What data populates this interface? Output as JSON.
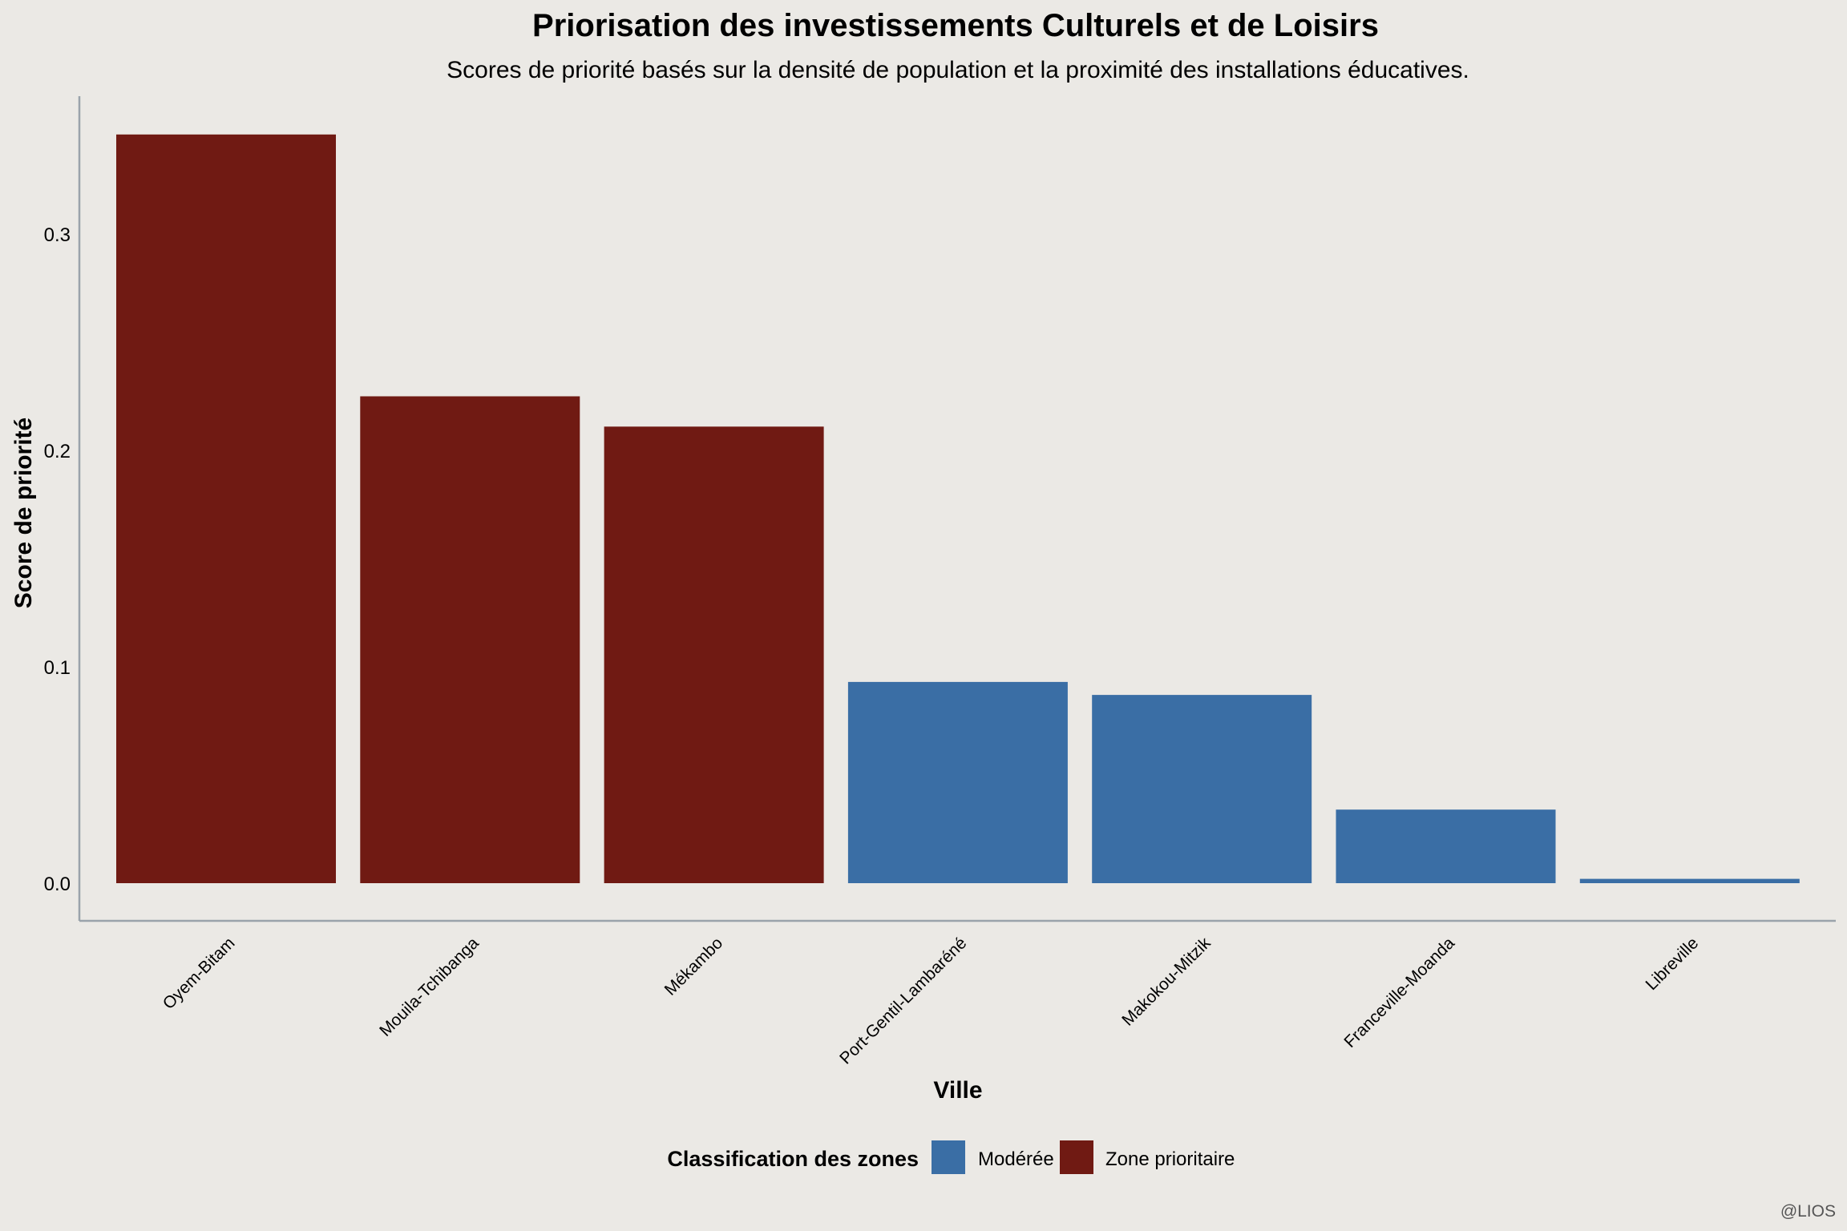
{
  "chart_data": {
    "type": "bar",
    "title": "Priorisation des investissements Culturels et de Loisirs",
    "subtitle": "Scores de priorité basés sur la densité de population et la proximité des installations éducatives.",
    "xlabel": "Ville",
    "ylabel": "Score de priorité",
    "categories": [
      "Oyem-Bitam",
      "Mouila-Tchibanga",
      "Mékambo",
      "Port-Gentil-Lambaréné",
      "Makokou-Mitzik",
      "Franceville-Moanda",
      "Libreville"
    ],
    "values": [
      0.346,
      0.225,
      0.211,
      0.093,
      0.087,
      0.034,
      0.002
    ],
    "classes": [
      "Zone prioritaire",
      "Zone prioritaire",
      "Zone prioritaire",
      "Modérée",
      "Modérée",
      "Modérée",
      "Modérée"
    ],
    "yticks": [
      0.0,
      0.1,
      0.2,
      0.3
    ],
    "ylim": [
      -0.017,
      0.364
    ],
    "grid": false,
    "legend": {
      "title": "Classification des zones",
      "position": "bottom",
      "items": [
        {
          "label": "Modérée",
          "color": "#3A6EA5"
        },
        {
          "label": "Zone prioritaire",
          "color": "#701A13"
        }
      ]
    },
    "caption": "@LIOS"
  },
  "colors": {
    "background": "#EBE9E5",
    "text": "#1F2A3A",
    "axis": "#9AA3AB"
  }
}
